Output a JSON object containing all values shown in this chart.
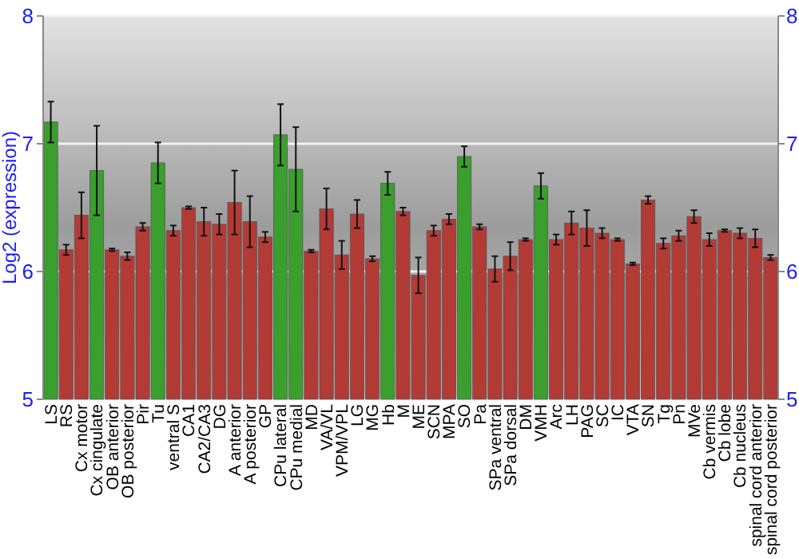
{
  "chart_data": {
    "type": "bar",
    "ylabel": "Log2 (expression)",
    "categories": [
      "LS",
      "RS",
      "Cx motor",
      "Cx cingulate",
      "OB anterior",
      "OB posterior",
      "Pir",
      "Tu",
      "ventral S",
      "CA1",
      "CA2/CA3",
      "DG",
      "A anterior",
      "A posterior",
      "GP",
      "CPu lateral",
      "CPu medial",
      "MD",
      "VA/VL",
      "VPM/VPL",
      "LG",
      "MG",
      "Hb",
      "M",
      "ME",
      "SCN",
      "MPA",
      "SO",
      "Pa",
      "SPa ventral",
      "SPa dorsal",
      "DM",
      "VMH",
      "Arc",
      "LH",
      "PAG",
      "SC",
      "IC",
      "VTA",
      "SN",
      "Tg",
      "Pn",
      "MVe",
      "Cb vermis",
      "Cb lobe",
      "Cb nucleus",
      "spinal cord anterior",
      "spinal cord posterior"
    ],
    "values": [
      7.17,
      6.17,
      6.44,
      6.79,
      6.17,
      6.12,
      6.35,
      6.85,
      6.32,
      6.5,
      6.39,
      6.37,
      6.54,
      6.39,
      6.27,
      7.07,
      6.8,
      6.16,
      6.49,
      6.13,
      6.45,
      6.1,
      6.69,
      6.47,
      5.97,
      6.32,
      6.41,
      6.9,
      6.35,
      6.02,
      6.12,
      6.25,
      6.67,
      6.25,
      6.38,
      6.34,
      6.3,
      6.25,
      6.06,
      6.56,
      6.22,
      6.28,
      6.43,
      6.25,
      6.32,
      6.3,
      6.26,
      6.11
    ],
    "errors": [
      0.16,
      0.04,
      0.18,
      0.35,
      0.01,
      0.03,
      0.03,
      0.16,
      0.04,
      0.01,
      0.11,
      0.08,
      0.25,
      0.2,
      0.04,
      0.24,
      0.33,
      0.01,
      0.16,
      0.11,
      0.11,
      0.02,
      0.09,
      0.03,
      0.14,
      0.04,
      0.04,
      0.08,
      0.02,
      0.1,
      0.11,
      0.01,
      0.1,
      0.04,
      0.09,
      0.14,
      0.04,
      0.01,
      0.01,
      0.03,
      0.04,
      0.04,
      0.05,
      0.05,
      0.01,
      0.04,
      0.07,
      0.02
    ],
    "colors": [
      "#3a9f2c",
      "#b33b36",
      "#b33b36",
      "#3a9f2c",
      "#b33b36",
      "#b33b36",
      "#b33b36",
      "#3a9f2c",
      "#b33b36",
      "#b33b36",
      "#b33b36",
      "#b33b36",
      "#b33b36",
      "#b33b36",
      "#b33b36",
      "#3a9f2c",
      "#3a9f2c",
      "#b33b36",
      "#b33b36",
      "#b33b36",
      "#b33b36",
      "#b33b36",
      "#3a9f2c",
      "#b33b36",
      "#b33b36",
      "#b33b36",
      "#b33b36",
      "#3a9f2c",
      "#b33b36",
      "#b33b36",
      "#b33b36",
      "#b33b36",
      "#3a9f2c",
      "#b33b36",
      "#b33b36",
      "#b33b36",
      "#b33b36",
      "#b33b36",
      "#b33b36",
      "#b33b36",
      "#b33b36",
      "#b33b36",
      "#b33b36",
      "#b33b36",
      "#b33b36",
      "#b33b36",
      "#b33b36",
      "#b33b36"
    ],
    "ylim": [
      5,
      8
    ],
    "yticks": [
      5,
      6,
      7,
      8
    ],
    "y2lim": [
      5,
      8
    ],
    "y2ticks": [
      5,
      6,
      7,
      8
    ],
    "grid": "y"
  }
}
